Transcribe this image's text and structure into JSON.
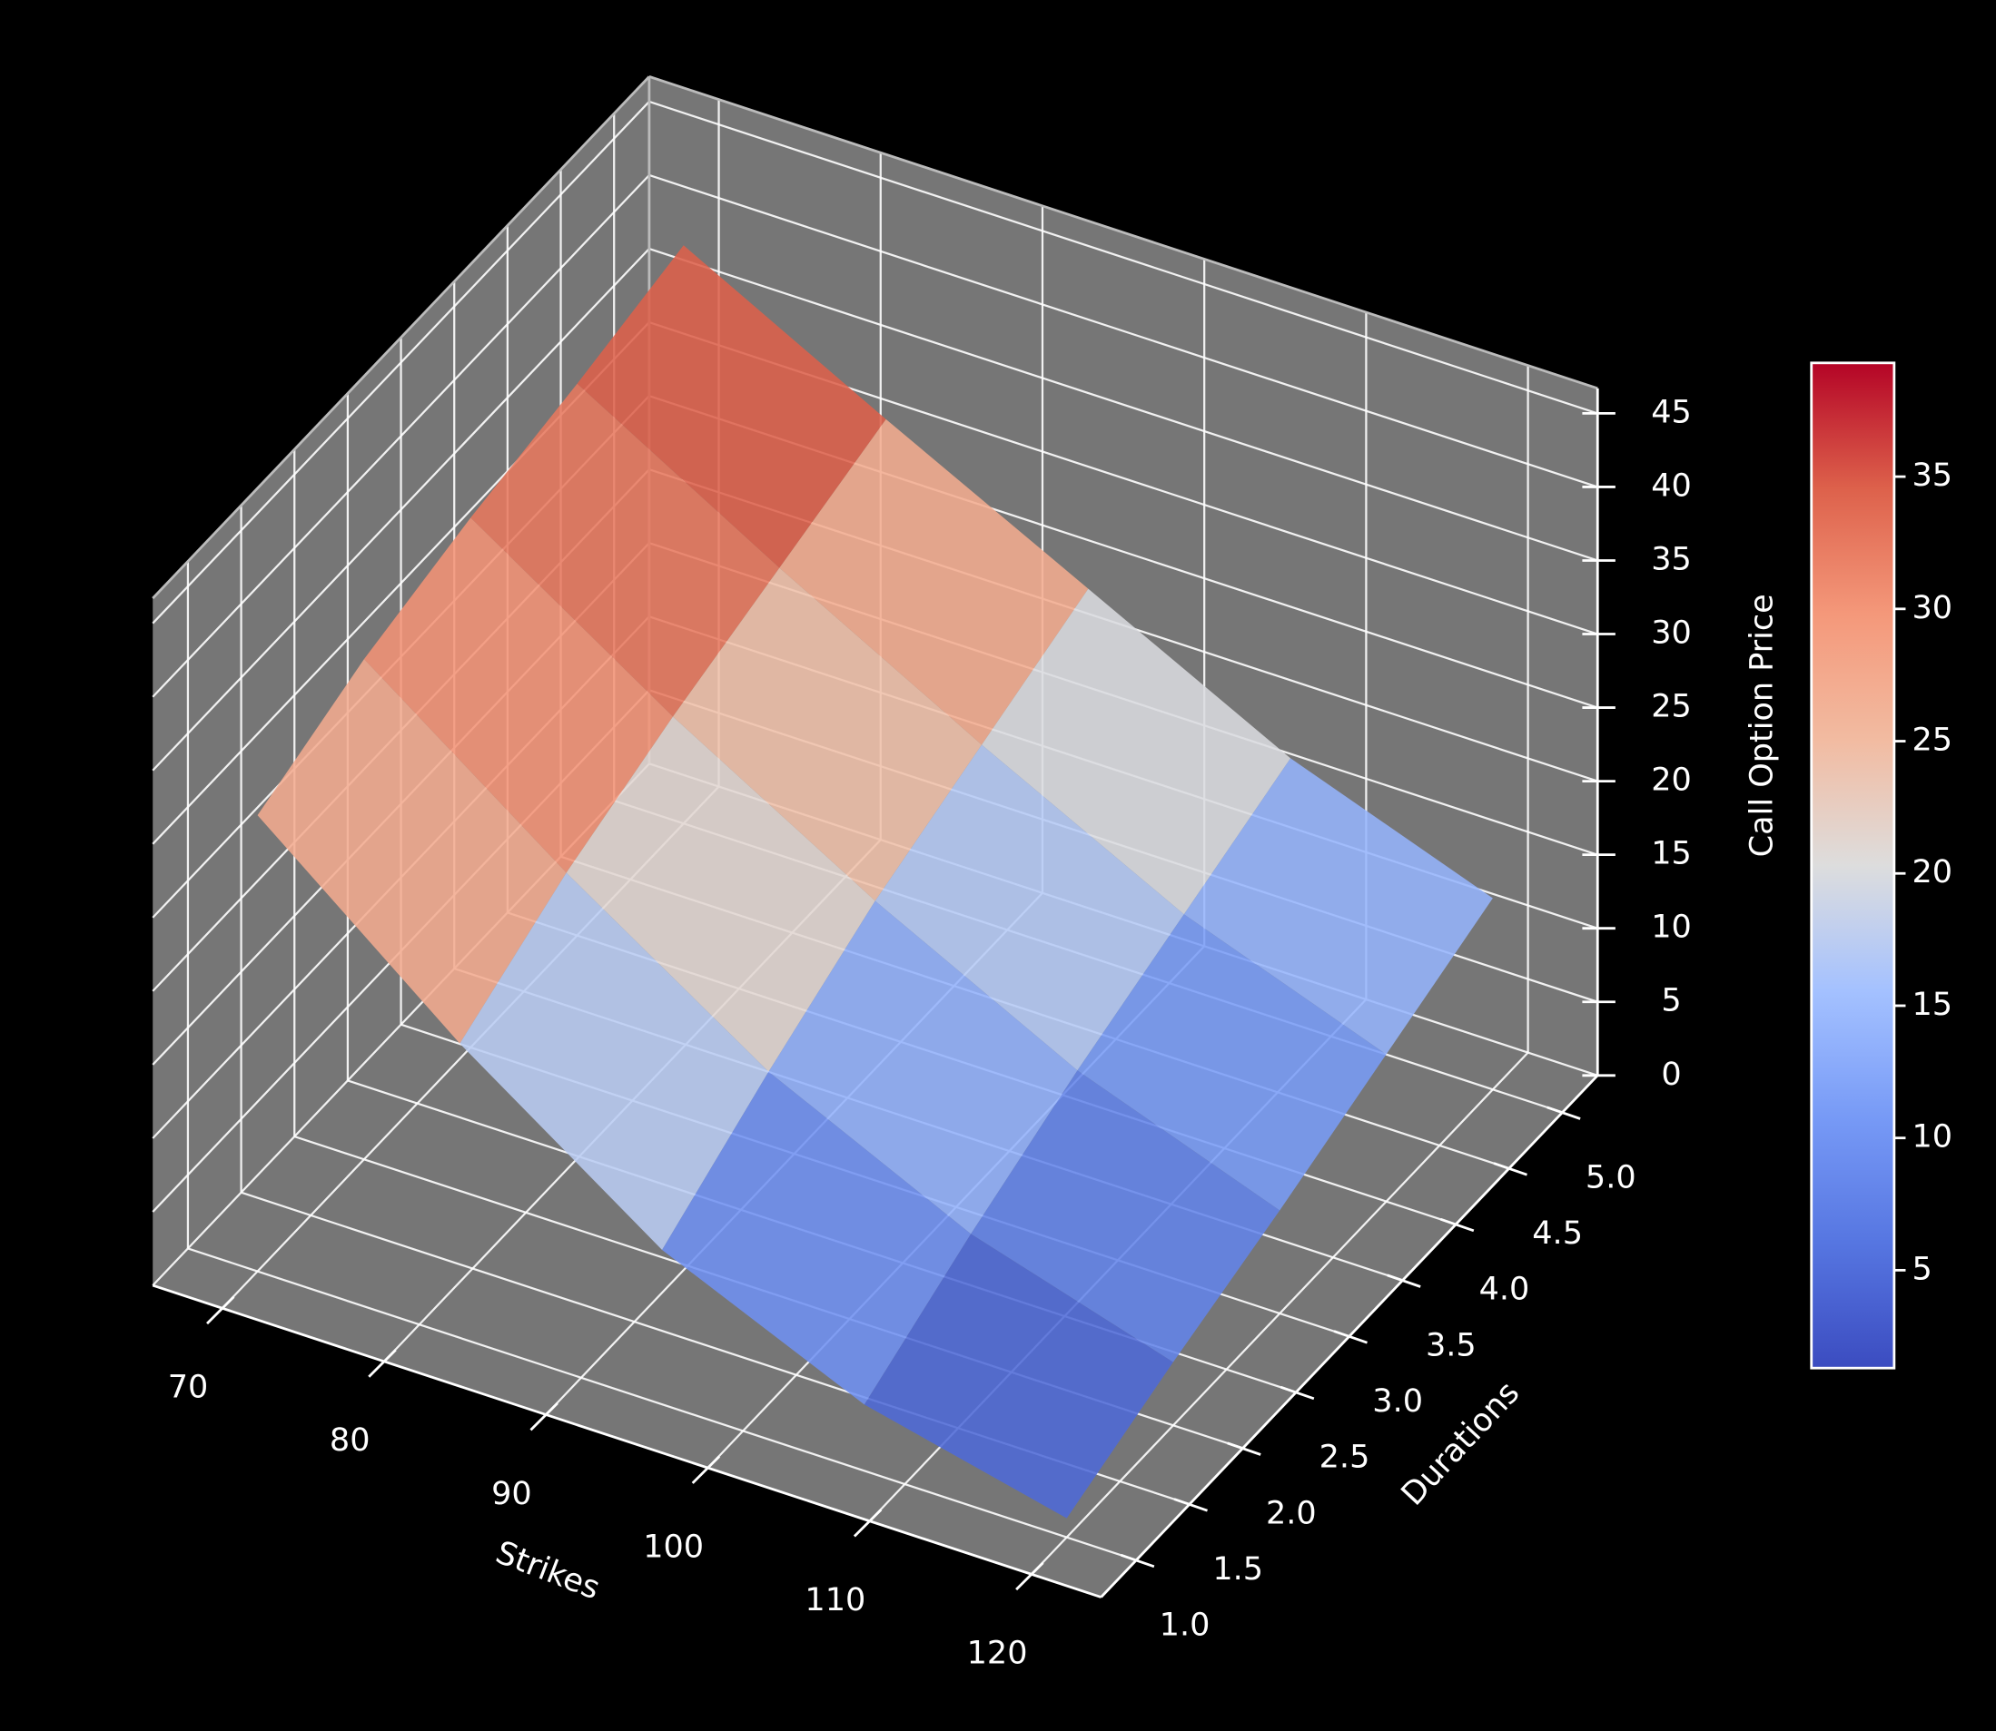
{
  "chart_data": {
    "type": "surface",
    "colormap": "coolwarm",
    "xlabel": "Strikes",
    "ylabel": "Durations",
    "zlabel": "Call Option Price",
    "x": [
      70,
      82.5,
      95,
      107.5,
      120
    ],
    "y": [
      1,
      2,
      3,
      4,
      5
    ],
    "z": [
      [
        31,
        20,
        10.5,
        4.5,
        1.3
      ],
      [
        34,
        24,
        15,
        8.5,
        4.3
      ],
      [
        36,
        27,
        19,
        12,
        7
      ],
      [
        37.5,
        29.5,
        22,
        15,
        10
      ],
      [
        39.3,
        32,
        25,
        18,
        13
      ]
    ],
    "xlim": [
      65.7,
      124.3
    ],
    "ylim": [
      0.67,
      5.33
    ],
    "zlim": [
      0,
      46.7
    ],
    "xticks": [
      70,
      80,
      90,
      100,
      110,
      120
    ],
    "yticks": [
      {
        "value": 1,
        "label": "1.0"
      },
      {
        "value": 1.5,
        "label": "1.5"
      },
      {
        "value": 2,
        "label": "2.0"
      },
      {
        "value": 2.5,
        "label": "2.5"
      },
      {
        "value": 3,
        "label": "3.0"
      },
      {
        "value": 3.5,
        "label": "3.5"
      },
      {
        "value": 4,
        "label": "4.0"
      },
      {
        "value": 4.5,
        "label": "4.5"
      },
      {
        "value": 5,
        "label": "5.0"
      }
    ],
    "zticks": [
      0,
      5,
      10,
      15,
      20,
      25,
      30,
      35,
      40,
      45
    ],
    "colorbar": {
      "lim": [
        1.3,
        39.3
      ],
      "ticks": [
        5,
        10,
        15,
        20,
        25,
        30,
        35
      ]
    },
    "grid": true
  }
}
